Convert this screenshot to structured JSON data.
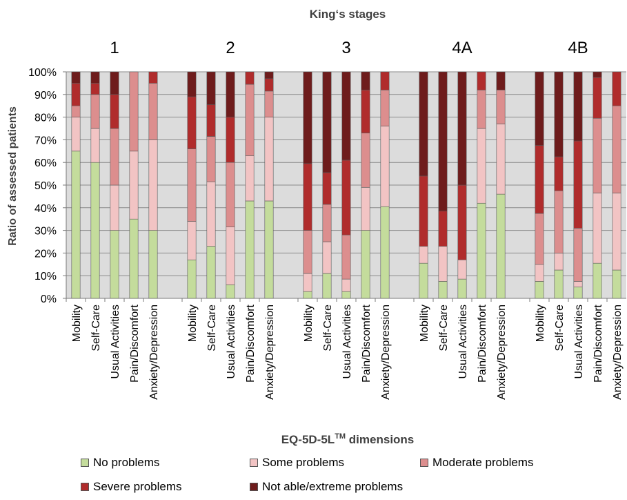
{
  "chart_data": {
    "type": "bar",
    "stacked": true,
    "normalized": true,
    "title": "King‘s stages",
    "xlabel": "EQ-5D-5L",
    "xlabel_superscript": "TM",
    "xlabel_suffix": " dimensions",
    "ylabel": "Ratio of assessed patients",
    "ylim": [
      0,
      100
    ],
    "y_ticks": [
      "0%",
      "10%",
      "20%",
      "30%",
      "40%",
      "50%",
      "60%",
      "70%",
      "80%",
      "90%",
      "100%"
    ],
    "grid": true,
    "plot_background": "#dcdcdc",
    "legend_position": "bottom",
    "group_labels": [
      "1",
      "2",
      "3",
      "4A",
      "4B"
    ],
    "categories": [
      "Mobility",
      "Self-Care",
      "Usual Activities",
      "Pain/Discomfort",
      "Anxiety/Depression"
    ],
    "series": [
      {
        "name": "No problems",
        "color": "#c4dc9c"
      },
      {
        "name": "Some problems",
        "color": "#f2c4c4"
      },
      {
        "name": "Moderate problems",
        "color": "#dc8e8e"
      },
      {
        "name": "Severe problems",
        "color": "#b02c2c"
      },
      {
        "name": "Not able/extreme problems",
        "color": "#6e1c1c"
      }
    ],
    "groups": [
      {
        "label": "1",
        "bars": [
          {
            "category": "Mobility",
            "values": [
              65,
              15,
              5,
              10,
              5
            ]
          },
          {
            "category": "Self-Care",
            "values": [
              60,
              15,
              15,
              5,
              5
            ]
          },
          {
            "category": "Usual Activities",
            "values": [
              30,
              20,
              25,
              15,
              10
            ]
          },
          {
            "category": "Pain/Discomfort",
            "values": [
              35,
              30,
              35,
              0,
              0
            ]
          },
          {
            "category": "Anxiety/Depression",
            "values": [
              30,
              40,
              25,
              5,
              0
            ]
          }
        ]
      },
      {
        "label": "2",
        "bars": [
          {
            "category": "Mobility",
            "values": [
              17,
              17,
              32,
              23,
              11
            ]
          },
          {
            "category": "Self-Care",
            "values": [
              23,
              28.5,
              20,
              14,
              14.5
            ]
          },
          {
            "category": "Usual Activities",
            "values": [
              6,
              25.5,
              28.5,
              20,
              20
            ]
          },
          {
            "category": "Pain/Discomfort",
            "values": [
              43,
              20,
              31.5,
              5.5,
              0
            ]
          },
          {
            "category": "Anxiety/Depression",
            "values": [
              43,
              37,
              11.5,
              5.5,
              3
            ]
          }
        ]
      },
      {
        "label": "3",
        "bars": [
          {
            "category": "Mobility",
            "values": [
              3,
              8,
              19,
              29.5,
              40.5
            ]
          },
          {
            "category": "Self-Care",
            "values": [
              11,
              14,
              16.5,
              14,
              44.5
            ]
          },
          {
            "category": "Usual Activities",
            "values": [
              3,
              5.5,
              19.5,
              33,
              39
            ]
          },
          {
            "category": "Pain/Discomfort",
            "values": [
              30,
              19,
              24,
              19,
              8
            ]
          },
          {
            "category": "Anxiety/Depression",
            "values": [
              40.5,
              35.5,
              16,
              8,
              0
            ]
          }
        ]
      },
      {
        "label": "4A",
        "bars": [
          {
            "category": "Mobility",
            "values": [
              15.5,
              7.5,
              0,
              31,
              46
            ]
          },
          {
            "category": "Self-Care",
            "values": [
              7.5,
              15.5,
              0,
              15.5,
              61.5
            ]
          },
          {
            "category": "Usual Activities",
            "values": [
              8.5,
              8.5,
              0,
              33,
              50
            ]
          },
          {
            "category": "Pain/Discomfort",
            "values": [
              42,
              33,
              17,
              8,
              0
            ]
          },
          {
            "category": "Anxiety/Depression",
            "values": [
              46,
              31,
              15,
              0,
              8
            ]
          }
        ]
      },
      {
        "label": "4B",
        "bars": [
          {
            "category": "Mobility",
            "values": [
              7.5,
              7.5,
              22.5,
              30,
              32.5
            ]
          },
          {
            "category": "Self-Care",
            "values": [
              12.5,
              7.5,
              27.5,
              15,
              37.5
            ]
          },
          {
            "category": "Usual Activities",
            "values": [
              5,
              2.5,
              23.5,
              38.5,
              30.5
            ]
          },
          {
            "category": "Pain/Discomfort",
            "values": [
              15.5,
              31,
              33,
              18,
              2.5
            ]
          },
          {
            "category": "Anxiety/Depression",
            "values": [
              12.5,
              34,
              38.5,
              15,
              0
            ]
          }
        ]
      }
    ]
  }
}
